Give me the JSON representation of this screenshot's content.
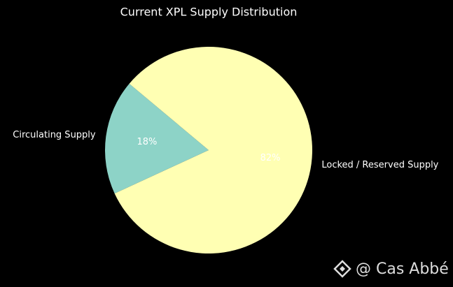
{
  "chart_data": {
    "type": "pie",
    "title": "Current XPL Supply Distribution",
    "categories": [
      "Circulating Supply",
      "Locked / Reserved Supply"
    ],
    "values": [
      18,
      82
    ],
    "value_labels": [
      "18%",
      "82%"
    ],
    "colors": [
      "#8dd3c7",
      "#ffffb3"
    ],
    "watermark": "@ Cas Abbé"
  }
}
